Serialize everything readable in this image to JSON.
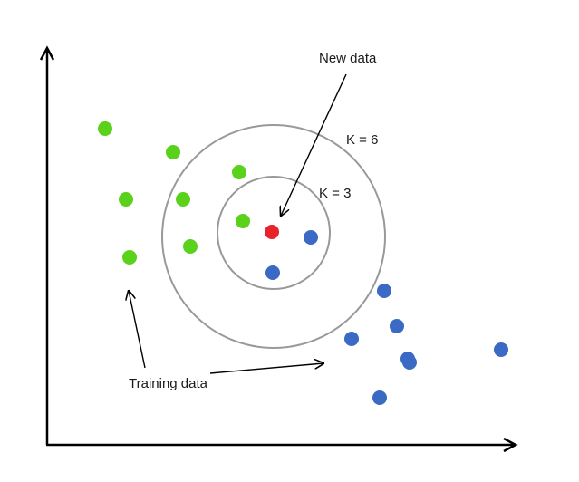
{
  "labels": {
    "new_data": "New data",
    "k6": "K = 6",
    "k3": "K = 3",
    "training_data": "Training data"
  },
  "colors": {
    "class_a": "#5ad11b",
    "class_b": "#3a6ac4",
    "new_point": "#e8232a",
    "circle": "#999999",
    "axis": "#000000"
  },
  "points": {
    "class_a": 8,
    "class_b": 10,
    "new_point": 1
  }
}
